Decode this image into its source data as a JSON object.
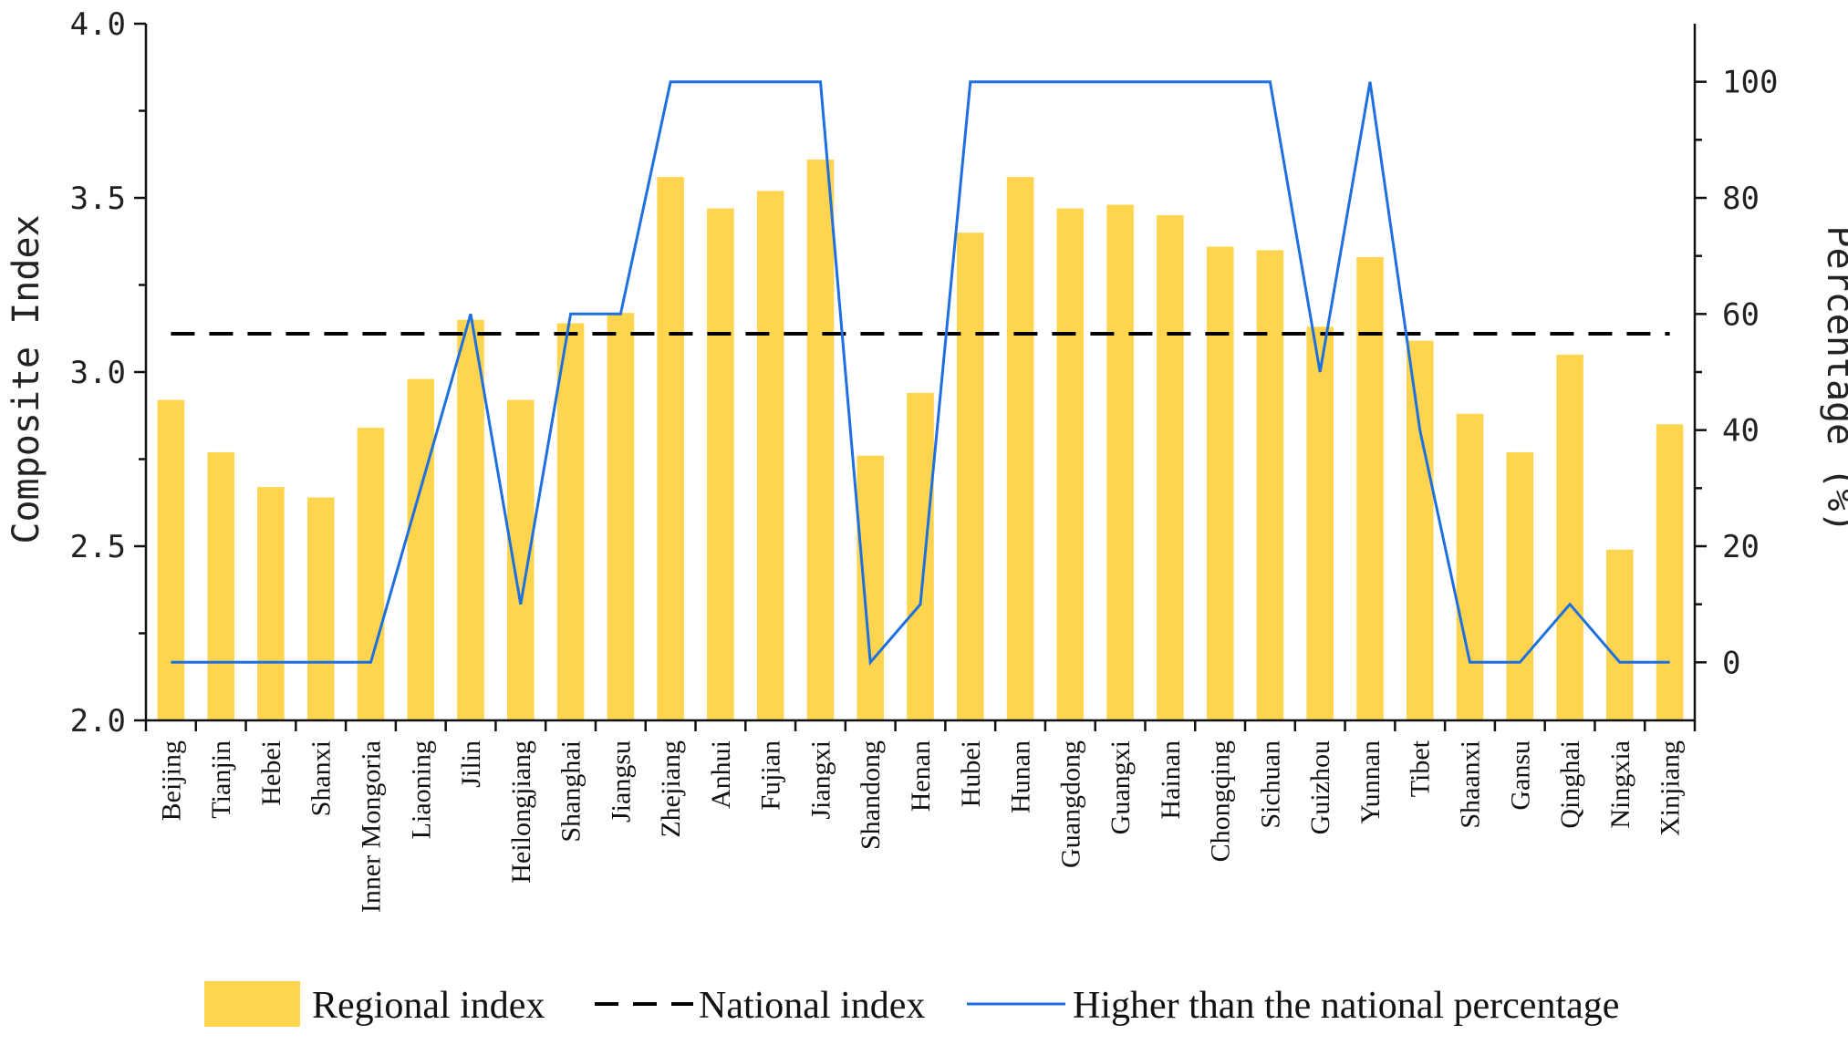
{
  "chart_data": {
    "type": "bar",
    "categories": [
      "Beijing",
      "Tianjin",
      "Hebei",
      "Shanxi",
      "Inner Mongoria",
      "Liaoning",
      "Jilin",
      "Heilongjiang",
      "Shanghai",
      "Jiangsu",
      "Zhejiang",
      "Anhui",
      "Fujian",
      "Jiangxi",
      "Shandong",
      "Henan",
      "Hubei",
      "Hunan",
      "Guangdong",
      "Guangxi",
      "Hainan",
      "Chongqing",
      "Sichuan",
      "Guizhou",
      "Yunnan",
      "Tibet",
      "Shaanxi",
      "Gansu",
      "Qinghai",
      "Ningxia",
      "Xinjiang"
    ],
    "series": [
      {
        "name": "Regional index",
        "type": "bar",
        "axis": "left",
        "color": "#FFD54F",
        "values": [
          2.92,
          2.77,
          2.67,
          2.64,
          2.84,
          2.98,
          3.15,
          2.92,
          3.14,
          3.17,
          3.56,
          3.47,
          3.52,
          3.61,
          2.76,
          2.94,
          3.4,
          3.56,
          3.47,
          3.48,
          3.45,
          3.36,
          3.35,
          3.13,
          3.33,
          3.09,
          2.88,
          2.77,
          3.05,
          2.49,
          2.85
        ]
      },
      {
        "name": "National index",
        "type": "line",
        "axis": "left",
        "style": "dashed",
        "color": "#000000",
        "value": 3.11
      },
      {
        "name": "Higher than the national percentage",
        "type": "line",
        "axis": "right",
        "color": "#1E6FE0",
        "values": [
          0,
          0,
          0,
          0,
          0,
          30,
          60,
          10,
          60,
          60,
          100,
          100,
          100,
          100,
          0,
          10,
          100,
          100,
          100,
          100,
          100,
          100,
          100,
          50,
          100,
          40,
          0,
          0,
          10,
          0,
          0
        ]
      }
    ],
    "ylabel": "Composite Index",
    "y2label": "Percentage (%)",
    "ylim": [
      2.0,
      4.0
    ],
    "yticks": [
      "2.0",
      "2.5",
      "3.0",
      "3.5",
      "4.0"
    ],
    "y2lim": [
      -10,
      110
    ],
    "y2ticks": [
      "0",
      "20",
      "40",
      "60",
      "80",
      "100"
    ],
    "legend": {
      "position": "bottom",
      "items": [
        "Regional index",
        "National index",
        "Higher than the national percentage"
      ]
    }
  }
}
